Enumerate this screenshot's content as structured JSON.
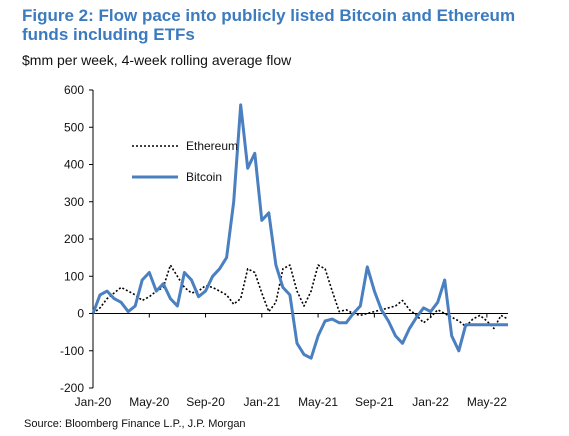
{
  "header": {
    "title": "Figure 2: Flow pace into publicly listed Bitcoin and Ethereum funds including ETFs",
    "subtitle": "$mm per week, 4-week rolling average flow"
  },
  "footer": {
    "source": "Source: Bloomberg Finance L.P., J.P. Morgan"
  },
  "chart_data": {
    "type": "line",
    "title": "Figure 2: Flow pace into publicly listed Bitcoin and Ethereum funds including ETFs",
    "subtitle": "$mm per week, 4-week rolling average flow",
    "xlabel": "",
    "ylabel": "",
    "ylim": [
      -200,
      600
    ],
    "yticks": [
      600,
      500,
      400,
      300,
      200,
      100,
      0,
      -100,
      -200
    ],
    "x_ticks": [
      "Jan-20",
      "May-20",
      "Sep-20",
      "Jan-21",
      "May-21",
      "Sep-21",
      "Jan-22",
      "May-22"
    ],
    "legend_position": "upper-left",
    "grid": false,
    "series": [
      {
        "name": "Ethereum",
        "color": "#000000",
        "style": "dotted",
        "x": [
          0,
          0.5,
          1,
          1.5,
          2,
          2.5,
          3,
          3.5,
          4,
          4.5,
          5,
          5.5,
          6,
          6.5,
          7,
          7.5,
          8,
          8.5,
          9,
          9.5,
          10,
          10.5,
          11,
          11.5,
          12,
          12.5,
          13,
          13.5,
          14,
          14.5,
          15,
          15.5,
          16,
          16.5,
          17,
          17.5,
          18,
          18.5,
          19,
          19.5,
          20,
          20.5,
          21,
          21.5,
          22,
          22.5,
          23,
          23.5,
          24,
          24.5,
          25,
          25.5,
          26,
          26.5,
          27,
          27.5,
          28,
          28.5,
          29,
          29.5
        ],
        "y": [
          0,
          15,
          40,
          55,
          70,
          60,
          50,
          35,
          45,
          60,
          70,
          130,
          100,
          70,
          55,
          60,
          75,
          70,
          60,
          50,
          25,
          40,
          120,
          110,
          55,
          5,
          30,
          120,
          130,
          60,
          20,
          60,
          130,
          120,
          60,
          5,
          10,
          0,
          -5,
          0,
          5,
          10,
          15,
          20,
          35,
          10,
          -5,
          -25,
          -10,
          10,
          0,
          -10,
          -20,
          -35,
          -15,
          -5,
          -20,
          -40,
          -5,
          -15
        ]
      },
      {
        "name": "Bitcoin",
        "color": "#4a7fc0",
        "style": "solid",
        "x": [
          0,
          0.5,
          1,
          1.5,
          2,
          2.5,
          3,
          3.5,
          4,
          4.5,
          5,
          5.5,
          6,
          6.5,
          7,
          7.5,
          8,
          8.5,
          9,
          9.5,
          10,
          10.5,
          11,
          11.5,
          12,
          12.5,
          13,
          13.5,
          14,
          14.5,
          15,
          15.5,
          16,
          16.5,
          17,
          17.5,
          18,
          18.5,
          19,
          19.5,
          20,
          20.5,
          21,
          21.5,
          22,
          22.5,
          23,
          23.5,
          24,
          24.5,
          25,
          25.5,
          26,
          26.5,
          27,
          27.5,
          28,
          28.5,
          29,
          29.5
        ],
        "y": [
          0,
          50,
          60,
          40,
          30,
          5,
          20,
          90,
          110,
          60,
          80,
          40,
          20,
          110,
          90,
          45,
          60,
          100,
          120,
          150,
          300,
          560,
          390,
          430,
          250,
          270,
          130,
          70,
          50,
          -80,
          -110,
          -120,
          -60,
          -20,
          -15,
          -25,
          -25,
          0,
          20,
          125,
          60,
          10,
          -20,
          -60,
          -80,
          -40,
          -10,
          15,
          5,
          30,
          90,
          -60,
          -100,
          -30,
          -30,
          -30,
          -30,
          -30,
          -30,
          -30
        ]
      }
    ]
  }
}
